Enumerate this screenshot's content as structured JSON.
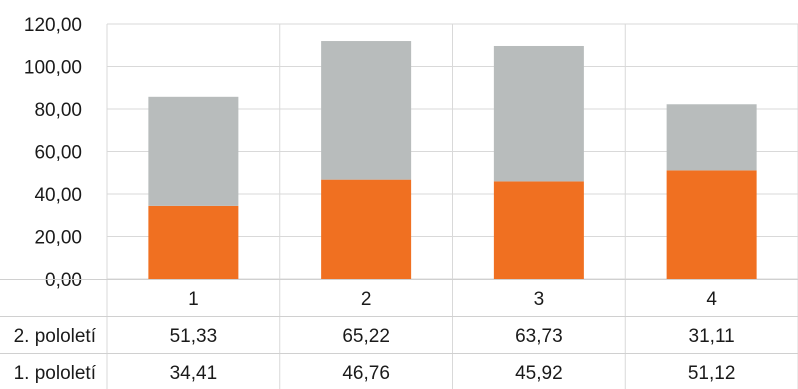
{
  "chart_data": {
    "type": "bar",
    "stacked": true,
    "categories": [
      "1",
      "2",
      "3",
      "4"
    ],
    "series": [
      {
        "name": "1. pololetí",
        "values": [
          34.41,
          46.76,
          45.92,
          51.12
        ],
        "color": "#f07021"
      },
      {
        "name": "2. pololetí",
        "values": [
          51.33,
          65.22,
          63.73,
          31.11
        ],
        "color": "#b8bcbc"
      }
    ],
    "ylim": [
      0,
      120
    ],
    "yticks": [
      "0,00",
      "20,00",
      "40,00",
      "60,00",
      "80,00",
      "100,00",
      "120,00"
    ],
    "table": {
      "rows": [
        {
          "label": "2. pololetí",
          "cells": [
            "51,33",
            "65,22",
            "63,73",
            "31,11"
          ]
        },
        {
          "label": "1. pololetí",
          "cells": [
            "34,41",
            "46,76",
            "45,92",
            "51,12"
          ]
        }
      ]
    },
    "grid": true
  }
}
